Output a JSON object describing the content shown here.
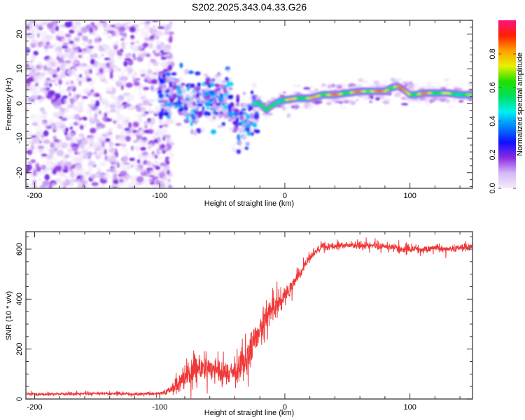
{
  "chart_data": [
    {
      "type": "heatmap",
      "title": "S202.2025.343.04.33.G26",
      "xlabel": "Height of straight line (km)",
      "ylabel": "Frequency (Hz)",
      "xlim": [
        -207,
        150
      ],
      "ylim": [
        -24.5,
        24
      ],
      "xticks": [
        -200,
        -100,
        0,
        100
      ],
      "yticks": [
        -20,
        -10,
        0,
        10,
        20
      ],
      "colorbar": {
        "label": "Normalized spectral amplitude",
        "range": [
          0.0,
          1.0
        ],
        "ticks": [
          0.0,
          0.2,
          0.4,
          0.6,
          0.8
        ],
        "colors": [
          "#f4ecfb",
          "#d4b8f5",
          "#8a2be2",
          "#1010ff",
          "#0080ff",
          "#00f0f0",
          "#00e060",
          "#20e000",
          "#e8f000",
          "#ffa000",
          "#ff2000",
          "#ff1080"
        ]
      },
      "noise_region": {
        "x_range": [
          -207,
          -95
        ],
        "y_range": [
          -24.5,
          24
        ],
        "amplitude": 0.15
      },
      "scatter_region": {
        "x_range": [
          -95,
          -25
        ],
        "amplitude": 0.3
      },
      "trace": {
        "x": [
          -90,
          -80,
          -70,
          -60,
          -50,
          -45,
          -40,
          -35,
          -30,
          -25,
          -20,
          -15,
          -10,
          -5,
          0,
          10,
          20,
          30,
          40,
          50,
          60,
          70,
          80,
          85,
          90,
          95,
          100,
          105,
          110,
          120,
          130,
          140,
          150
        ],
        "freq": [
          3,
          1,
          -1,
          2,
          0,
          4,
          -1,
          -3,
          -4,
          0,
          0,
          -2,
          -0.5,
          0.5,
          1,
          1.5,
          1.5,
          2.5,
          2.5,
          3,
          3.5,
          3.5,
          3.5,
          4.5,
          5,
          4,
          2.5,
          2.5,
          3,
          3,
          3,
          2.5,
          2.5
        ],
        "amplitude": [
          0.25,
          0.3,
          0.3,
          0.35,
          0.35,
          0.3,
          0.3,
          0.35,
          0.4,
          0.6,
          0.75,
          0.6,
          0.7,
          0.7,
          0.75,
          0.85,
          0.8,
          0.9,
          0.9,
          0.85,
          0.9,
          0.95,
          0.9,
          0.9,
          0.95,
          0.85,
          0.9,
          0.85,
          0.9,
          0.85,
          0.75,
          0.7,
          0.7
        ]
      }
    },
    {
      "type": "line",
      "xlabel": "Height of straight line (km)",
      "ylabel": "SNR (10 * v/v)",
      "xlim": [
        -207,
        150
      ],
      "ylim": [
        0,
        670
      ],
      "xticks": [
        -200,
        -100,
        0,
        100
      ],
      "yticks": [
        0,
        200,
        400,
        600
      ],
      "color": "#ee2222",
      "series": [
        {
          "name": "SNR",
          "x": [
            -207,
            -180,
            -150,
            -120,
            -100,
            -95,
            -90,
            -85,
            -80,
            -75,
            -70,
            -65,
            -60,
            -55,
            -50,
            -45,
            -40,
            -35,
            -30,
            -25,
            -20,
            -15,
            -10,
            -5,
            0,
            5,
            10,
            15,
            20,
            25,
            30,
            40,
            50,
            60,
            70,
            80,
            90,
            95,
            100,
            110,
            120,
            130,
            140,
            150
          ],
          "mean": [
            20,
            20,
            22,
            20,
            22,
            28,
            40,
            60,
            90,
            110,
            120,
            130,
            125,
            115,
            110,
            100,
            110,
            130,
            170,
            230,
            280,
            330,
            360,
            380,
            410,
            450,
            490,
            530,
            570,
            590,
            610,
            615,
            615,
            615,
            615,
            610,
            605,
            595,
            600,
            600,
            605,
            600,
            605,
            610
          ],
          "noise": [
            8,
            8,
            8,
            8,
            10,
            15,
            30,
            50,
            60,
            70,
            75,
            70,
            65,
            60,
            55,
            55,
            60,
            80,
            90,
            90,
            90,
            80,
            70,
            60,
            50,
            40,
            35,
            30,
            25,
            20,
            20,
            20,
            20,
            20,
            20,
            20,
            25,
            25,
            20,
            20,
            20,
            20,
            20,
            20
          ]
        }
      ]
    }
  ]
}
